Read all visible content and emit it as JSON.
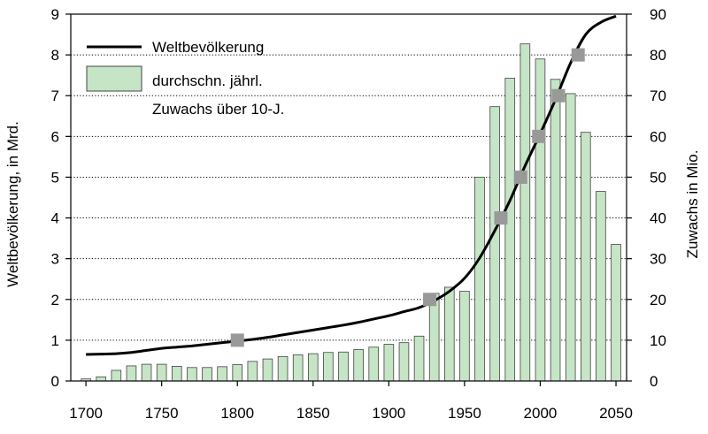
{
  "chart_data": {
    "type": "bar+line",
    "title": "",
    "x_axis": {
      "min": 1700,
      "max": 2050,
      "ticks": [
        1700,
        1750,
        1800,
        1850,
        1900,
        1950,
        2000,
        2050
      ]
    },
    "y_left": {
      "label": "Weltbevölkerung, in Mrd.",
      "min": 0,
      "max": 9,
      "ticks": [
        0,
        1,
        2,
        3,
        4,
        5,
        6,
        7,
        8,
        9
      ]
    },
    "y_right": {
      "label": "Zuwachs in Mio.",
      "min": 0,
      "max": 90,
      "ticks": [
        0,
        10,
        20,
        30,
        40,
        50,
        60,
        70,
        80,
        90
      ]
    },
    "gridlines": "horizontal, dotted",
    "legend": {
      "position": "top-left",
      "line_label": "Weltbevölkerung",
      "bar_label_line1": "durchschn. jährl.",
      "bar_label_line2": "Zuwachs über 10-J."
    },
    "colors": {
      "bar_fill": "#c6e4c6",
      "bar_stroke": "#444444",
      "line": "#000000",
      "marker": "#999999"
    },
    "bars": {
      "name": "durchschn. jährl. Zuwachs über 10-J.",
      "axis": "right",
      "x": [
        1700,
        1710,
        1720,
        1730,
        1740,
        1750,
        1760,
        1770,
        1780,
        1790,
        1800,
        1810,
        1820,
        1830,
        1840,
        1850,
        1860,
        1870,
        1880,
        1890,
        1900,
        1910,
        1920,
        1930,
        1940,
        1950,
        1960,
        1970,
        1980,
        1990,
        2000,
        2010,
        2020,
        2030,
        2040,
        2050
      ],
      "values": [
        0.5,
        1,
        2.6,
        3.7,
        4.1,
        4.1,
        3.6,
        3.3,
        3.3,
        3.5,
        4,
        4.8,
        5.4,
        6,
        6.4,
        6.7,
        7,
        7.1,
        7.7,
        8.3,
        9,
        9.4,
        11,
        21.5,
        23,
        22,
        50,
        67.3,
        74.3,
        82.7,
        79,
        74,
        70.5,
        61,
        46.5,
        33.5
      ]
    },
    "line": {
      "name": "Weltbevölkerung",
      "axis": "left",
      "x": [
        1700,
        1710,
        1720,
        1730,
        1740,
        1750,
        1760,
        1770,
        1780,
        1790,
        1800,
        1810,
        1820,
        1830,
        1840,
        1850,
        1860,
        1870,
        1880,
        1890,
        1900,
        1910,
        1920,
        1930,
        1940,
        1950,
        1960,
        1970,
        1980,
        1990,
        2000,
        2010,
        2020,
        2030,
        2040,
        2050
      ],
      "values": [
        0.65,
        0.66,
        0.67,
        0.7,
        0.75,
        0.8,
        0.83,
        0.86,
        0.9,
        0.94,
        0.98,
        1.02,
        1.07,
        1.13,
        1.19,
        1.25,
        1.31,
        1.37,
        1.44,
        1.52,
        1.6,
        1.7,
        1.8,
        1.97,
        2.2,
        2.52,
        3.02,
        3.69,
        4.43,
        5.28,
        6.07,
        6.9,
        7.8,
        8.5,
        8.8,
        8.95
      ]
    },
    "markers": {
      "shape": "square",
      "axis": "left",
      "x": [
        1800,
        1927,
        1974,
        1987,
        1999,
        2012,
        2025
      ],
      "values": [
        1,
        2,
        4,
        5,
        6,
        7,
        8
      ]
    }
  }
}
